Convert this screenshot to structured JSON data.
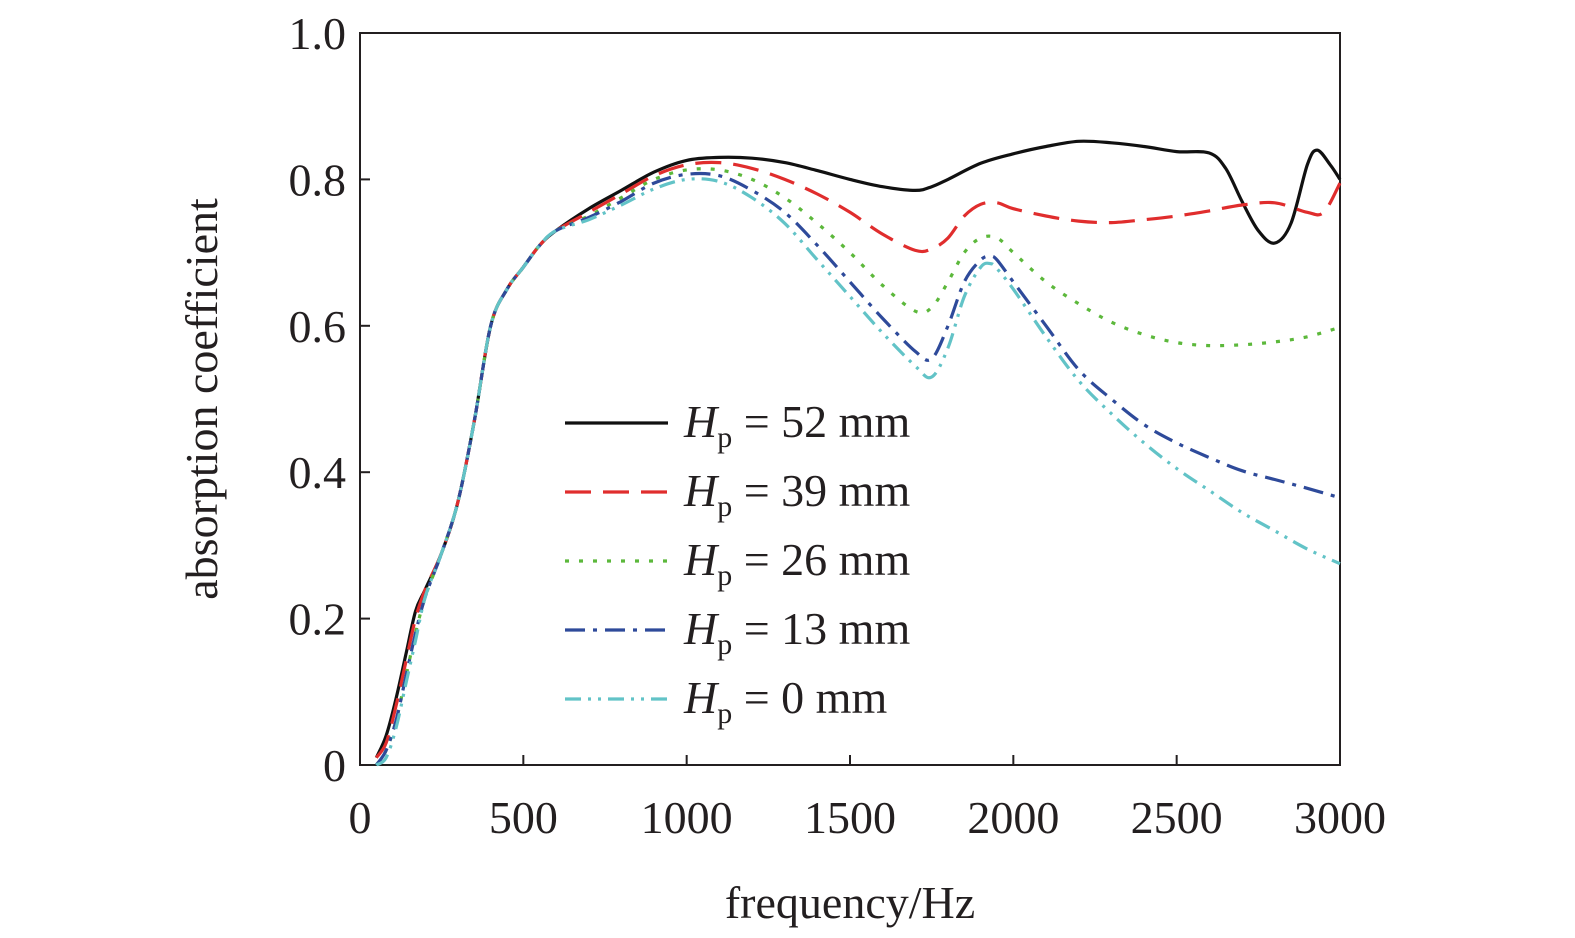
{
  "chart_data": {
    "type": "line",
    "title": "",
    "xlabel": "frequency/Hz",
    "ylabel": "absorption coefficient",
    "xlim": [
      0,
      3000
    ],
    "ylim": [
      0,
      1.0
    ],
    "x_ticks": [
      0,
      500,
      1000,
      1500,
      2000,
      2500,
      3000
    ],
    "x_tick_labels": [
      "0",
      "500",
      "1000",
      "1500",
      "2000",
      "2500",
      "3000"
    ],
    "y_ticks": [
      0,
      0.2,
      0.4,
      0.6,
      0.8,
      1.0
    ],
    "y_tick_labels": [
      "0",
      "0.2",
      "0.4",
      "0.6",
      "0.8",
      "1.0"
    ],
    "grid": false,
    "legend_position": "center",
    "series": [
      {
        "name": "H_p = 52 mm",
        "legend": {
          "symbol": "H",
          "sub": "p",
          "rest": " = 52 mm"
        },
        "color": "#111111",
        "dash": "solid",
        "points": [
          [
            50,
            0.01
          ],
          [
            80,
            0.04
          ],
          [
            110,
            0.09
          ],
          [
            140,
            0.15
          ],
          [
            170,
            0.21
          ],
          [
            200,
            0.24
          ],
          [
            250,
            0.29
          ],
          [
            300,
            0.36
          ],
          [
            350,
            0.47
          ],
          [
            400,
            0.6
          ],
          [
            450,
            0.65
          ],
          [
            500,
            0.68
          ],
          [
            550,
            0.71
          ],
          [
            600,
            0.73
          ],
          [
            700,
            0.76
          ],
          [
            800,
            0.785
          ],
          [
            900,
            0.81
          ],
          [
            1000,
            0.826
          ],
          [
            1100,
            0.83
          ],
          [
            1200,
            0.829
          ],
          [
            1300,
            0.823
          ],
          [
            1400,
            0.812
          ],
          [
            1500,
            0.8
          ],
          [
            1600,
            0.79
          ],
          [
            1700,
            0.785
          ],
          [
            1750,
            0.79
          ],
          [
            1800,
            0.8
          ],
          [
            1900,
            0.822
          ],
          [
            2000,
            0.835
          ],
          [
            2100,
            0.845
          ],
          [
            2200,
            0.852
          ],
          [
            2300,
            0.85
          ],
          [
            2400,
            0.845
          ],
          [
            2500,
            0.838
          ],
          [
            2600,
            0.836
          ],
          [
            2650,
            0.815
          ],
          [
            2700,
            0.77
          ],
          [
            2750,
            0.73
          ],
          [
            2800,
            0.713
          ],
          [
            2850,
            0.74
          ],
          [
            2900,
            0.82
          ],
          [
            2930,
            0.84
          ],
          [
            2970,
            0.82
          ],
          [
            3000,
            0.8
          ]
        ]
      },
      {
        "name": "H_p = 39 mm",
        "legend": {
          "symbol": "H",
          "sub": "p",
          "rest": " = 39 mm"
        },
        "color": "#e02d2d",
        "dash": "dashed",
        "points": [
          [
            50,
            0.01
          ],
          [
            80,
            0.03
          ],
          [
            110,
            0.08
          ],
          [
            140,
            0.14
          ],
          [
            170,
            0.2
          ],
          [
            200,
            0.24
          ],
          [
            250,
            0.29
          ],
          [
            300,
            0.36
          ],
          [
            350,
            0.47
          ],
          [
            400,
            0.6
          ],
          [
            450,
            0.65
          ],
          [
            500,
            0.68
          ],
          [
            550,
            0.71
          ],
          [
            600,
            0.73
          ],
          [
            700,
            0.755
          ],
          [
            800,
            0.78
          ],
          [
            900,
            0.805
          ],
          [
            1000,
            0.82
          ],
          [
            1100,
            0.823
          ],
          [
            1200,
            0.815
          ],
          [
            1300,
            0.8
          ],
          [
            1400,
            0.78
          ],
          [
            1500,
            0.755
          ],
          [
            1600,
            0.725
          ],
          [
            1700,
            0.703
          ],
          [
            1750,
            0.705
          ],
          [
            1800,
            0.72
          ],
          [
            1850,
            0.75
          ],
          [
            1900,
            0.766
          ],
          [
            1950,
            0.768
          ],
          [
            2000,
            0.76
          ],
          [
            2100,
            0.75
          ],
          [
            2200,
            0.743
          ],
          [
            2300,
            0.741
          ],
          [
            2400,
            0.745
          ],
          [
            2500,
            0.75
          ],
          [
            2600,
            0.757
          ],
          [
            2700,
            0.765
          ],
          [
            2800,
            0.768
          ],
          [
            2900,
            0.755
          ],
          [
            2950,
            0.755
          ],
          [
            3000,
            0.795
          ]
        ]
      },
      {
        "name": "H_p = 26 mm",
        "legend": {
          "symbol": "H",
          "sub": "p",
          "rest": " = 26 mm"
        },
        "color": "#5cb83b",
        "dash": "dotted",
        "points": [
          [
            50,
            0.0
          ],
          [
            80,
            0.02
          ],
          [
            110,
            0.06
          ],
          [
            140,
            0.12
          ],
          [
            170,
            0.18
          ],
          [
            200,
            0.23
          ],
          [
            250,
            0.29
          ],
          [
            300,
            0.36
          ],
          [
            350,
            0.47
          ],
          [
            400,
            0.6
          ],
          [
            450,
            0.65
          ],
          [
            500,
            0.68
          ],
          [
            550,
            0.71
          ],
          [
            600,
            0.73
          ],
          [
            700,
            0.75
          ],
          [
            800,
            0.775
          ],
          [
            900,
            0.8
          ],
          [
            1000,
            0.813
          ],
          [
            1100,
            0.813
          ],
          [
            1200,
            0.8
          ],
          [
            1300,
            0.775
          ],
          [
            1400,
            0.74
          ],
          [
            1500,
            0.7
          ],
          [
            1600,
            0.655
          ],
          [
            1700,
            0.62
          ],
          [
            1750,
            0.625
          ],
          [
            1800,
            0.66
          ],
          [
            1850,
            0.7
          ],
          [
            1900,
            0.72
          ],
          [
            1950,
            0.72
          ],
          [
            2000,
            0.7
          ],
          [
            2100,
            0.66
          ],
          [
            2200,
            0.63
          ],
          [
            2300,
            0.605
          ],
          [
            2400,
            0.588
          ],
          [
            2500,
            0.577
          ],
          [
            2600,
            0.573
          ],
          [
            2700,
            0.574
          ],
          [
            2800,
            0.578
          ],
          [
            2900,
            0.585
          ],
          [
            3000,
            0.598
          ]
        ]
      },
      {
        "name": "H_p = 13 mm",
        "legend": {
          "symbol": "H",
          "sub": "p",
          "rest": " = 13 mm"
        },
        "color": "#2e4a9a",
        "dash": "dashdot",
        "points": [
          [
            50,
            0.0
          ],
          [
            80,
            0.02
          ],
          [
            110,
            0.06
          ],
          [
            140,
            0.12
          ],
          [
            170,
            0.18
          ],
          [
            200,
            0.23
          ],
          [
            250,
            0.29
          ],
          [
            300,
            0.36
          ],
          [
            350,
            0.47
          ],
          [
            400,
            0.6
          ],
          [
            450,
            0.65
          ],
          [
            500,
            0.68
          ],
          [
            550,
            0.71
          ],
          [
            600,
            0.73
          ],
          [
            700,
            0.748
          ],
          [
            800,
            0.77
          ],
          [
            900,
            0.795
          ],
          [
            1000,
            0.807
          ],
          [
            1100,
            0.805
          ],
          [
            1200,
            0.785
          ],
          [
            1300,
            0.755
          ],
          [
            1400,
            0.71
          ],
          [
            1500,
            0.66
          ],
          [
            1600,
            0.61
          ],
          [
            1700,
            0.565
          ],
          [
            1750,
            0.555
          ],
          [
            1800,
            0.6
          ],
          [
            1850,
            0.66
          ],
          [
            1900,
            0.69
          ],
          [
            1930,
            0.695
          ],
          [
            1950,
            0.69
          ],
          [
            2000,
            0.66
          ],
          [
            2100,
            0.6
          ],
          [
            2200,
            0.54
          ],
          [
            2300,
            0.5
          ],
          [
            2400,
            0.465
          ],
          [
            2500,
            0.44
          ],
          [
            2600,
            0.42
          ],
          [
            2700,
            0.402
          ],
          [
            2800,
            0.39
          ],
          [
            2900,
            0.378
          ],
          [
            3000,
            0.365
          ]
        ]
      },
      {
        "name": "H_p = 0 mm",
        "legend": {
          "symbol": "H",
          "sub": "p",
          "rest": " = 0 mm"
        },
        "color": "#62c3c7",
        "dash": "dashdotdot",
        "points": [
          [
            50,
            0.0
          ],
          [
            80,
            0.01
          ],
          [
            110,
            0.05
          ],
          [
            140,
            0.11
          ],
          [
            170,
            0.17
          ],
          [
            200,
            0.23
          ],
          [
            250,
            0.29
          ],
          [
            300,
            0.36
          ],
          [
            350,
            0.47
          ],
          [
            400,
            0.6
          ],
          [
            450,
            0.65
          ],
          [
            500,
            0.68
          ],
          [
            550,
            0.71
          ],
          [
            600,
            0.73
          ],
          [
            700,
            0.745
          ],
          [
            800,
            0.765
          ],
          [
            900,
            0.787
          ],
          [
            1000,
            0.8
          ],
          [
            1100,
            0.797
          ],
          [
            1200,
            0.775
          ],
          [
            1300,
            0.74
          ],
          [
            1400,
            0.69
          ],
          [
            1500,
            0.64
          ],
          [
            1600,
            0.59
          ],
          [
            1700,
            0.545
          ],
          [
            1750,
            0.53
          ],
          [
            1800,
            0.57
          ],
          [
            1850,
            0.64
          ],
          [
            1900,
            0.68
          ],
          [
            1930,
            0.685
          ],
          [
            1950,
            0.678
          ],
          [
            2000,
            0.65
          ],
          [
            2100,
            0.585
          ],
          [
            2200,
            0.525
          ],
          [
            2300,
            0.48
          ],
          [
            2400,
            0.44
          ],
          [
            2500,
            0.405
          ],
          [
            2600,
            0.375
          ],
          [
            2700,
            0.345
          ],
          [
            2800,
            0.32
          ],
          [
            2900,
            0.295
          ],
          [
            3000,
            0.275
          ]
        ]
      }
    ]
  }
}
